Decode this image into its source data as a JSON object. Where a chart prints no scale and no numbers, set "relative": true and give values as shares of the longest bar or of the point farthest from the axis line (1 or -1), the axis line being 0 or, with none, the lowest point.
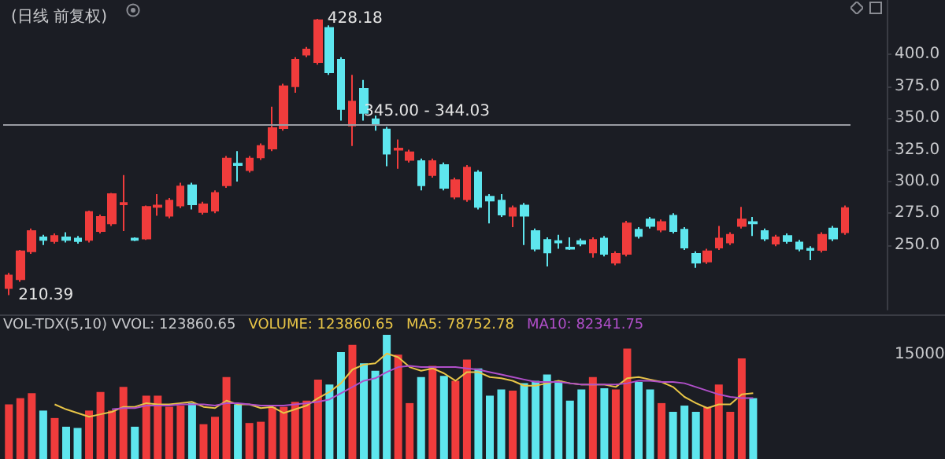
{
  "chart_data": [
    {
      "type": "candlestick",
      "title": "(日线 前复权)",
      "categories": [
        null,
        null,
        null,
        null,
        null,
        null,
        null,
        null,
        null,
        null,
        null,
        null,
        null,
        null,
        null,
        null,
        null,
        null,
        null,
        null,
        null,
        null,
        null,
        null,
        null,
        null,
        null,
        null,
        null,
        null,
        null,
        null,
        null,
        null,
        null,
        null,
        null,
        null,
        null,
        null,
        null,
        null,
        null,
        null,
        null,
        null,
        null,
        null,
        null,
        null,
        null,
        null,
        null,
        null,
        null,
        null,
        null,
        null,
        null,
        null,
        null,
        null,
        null,
        null,
        null,
        null,
        null,
        null,
        null,
        null,
        null,
        null,
        null,
        null
      ],
      "ohlc": [
        [
          216,
          228,
          210.39,
          226
        ],
        [
          223,
          246,
          221,
          245
        ],
        [
          245,
          263,
          243,
          261
        ],
        [
          256,
          258,
          250,
          254
        ],
        [
          253,
          259,
          251,
          257
        ],
        [
          256,
          260,
          252,
          254
        ],
        [
          255,
          257,
          251,
          253
        ],
        [
          254,
          277,
          252,
          276
        ],
        [
          261,
          274,
          259,
          272
        ],
        [
          267,
          291,
          265,
          290
        ],
        [
          282,
          305,
          261,
          283
        ],
        [
          255,
          256,
          253,
          254
        ],
        [
          255,
          281,
          254,
          280
        ],
        [
          280,
          290,
          273,
          281
        ],
        [
          273,
          287,
          271,
          285
        ],
        [
          281,
          299,
          279,
          296
        ],
        [
          297,
          299,
          278,
          282
        ],
        [
          276,
          284,
          274,
          282
        ],
        [
          277,
          293,
          275,
          291
        ],
        [
          297,
          320,
          295,
          318
        ],
        [
          314,
          324,
          300,
          313
        ],
        [
          309,
          320,
          307,
          318
        ],
        [
          319,
          330,
          317,
          328
        ],
        [
          326,
          359,
          324,
          342
        ],
        [
          342,
          377,
          340,
          375
        ],
        [
          375,
          398,
          370,
          396
        ],
        [
          400,
          406,
          398,
          404
        ],
        [
          394,
          428.18,
          392,
          427
        ],
        [
          421,
          423,
          384,
          386
        ],
        [
          396,
          398,
          348,
          357
        ],
        [
          344,
          384,
          328,
          363
        ],
        [
          373,
          380,
          348,
          354
        ],
        [
          349,
          352,
          340,
          345
        ],
        [
          341,
          343,
          312,
          322
        ],
        [
          325,
          333,
          310,
          326
        ],
        [
          317,
          325,
          315,
          323
        ],
        [
          316,
          318,
          293,
          297
        ],
        [
          305,
          318,
          303,
          316
        ],
        [
          313,
          315,
          293,
          295
        ],
        [
          288,
          303,
          286,
          301
        ],
        [
          286,
          313,
          284,
          311
        ],
        [
          307,
          309,
          278,
          280
        ],
        [
          288,
          290,
          267,
          285
        ],
        [
          285,
          290,
          272,
          274
        ],
        [
          273,
          281,
          264,
          279
        ],
        [
          281,
          283,
          250,
          273
        ],
        [
          261,
          263,
          245,
          247
        ],
        [
          254,
          256,
          233,
          244
        ],
        [
          253,
          258,
          247,
          252
        ],
        [
          248,
          256,
          246,
          247
        ],
        [
          253,
          255,
          249,
          251
        ],
        [
          244,
          256,
          240,
          254
        ],
        [
          255,
          257,
          241,
          243
        ],
        [
          236,
          245,
          234,
          243
        ],
        [
          243,
          269,
          241,
          267
        ],
        [
          262,
          264,
          255,
          257
        ],
        [
          270,
          272,
          263,
          265
        ],
        [
          262,
          270,
          260,
          268
        ],
        [
          273,
          275,
          259,
          261
        ],
        [
          262,
          264,
          246,
          248
        ],
        [
          243,
          245,
          232,
          236
        ],
        [
          237,
          247,
          235,
          245
        ],
        [
          248,
          265,
          246,
          255
        ],
        [
          252,
          260,
          250,
          258
        ],
        [
          265,
          280,
          263,
          270
        ],
        [
          268,
          272,
          257,
          267
        ],
        [
          261,
          263,
          253,
          255
        ],
        [
          251,
          258,
          249,
          256
        ],
        [
          257,
          259,
          251,
          253
        ],
        [
          252,
          254,
          245,
          247
        ],
        [
          247,
          249,
          238,
          246
        ],
        [
          246,
          260,
          244,
          258
        ],
        [
          263,
          265,
          253,
          255
        ],
        [
          260,
          281,
          258,
          279
        ]
      ],
      "colors": [
        "#f03c3c",
        "#f03c3c",
        "#f03c3c",
        "#5ee6ee",
        "#f03c3c",
        "#5ee6ee",
        "#5ee6ee",
        "#f03c3c",
        "#f03c3c",
        "#f03c3c",
        "#f03c3c",
        "#5ee6ee",
        "#f03c3c",
        "#f03c3c",
        "#f03c3c",
        "#f03c3c",
        "#5ee6ee",
        "#f03c3c",
        "#f03c3c",
        "#f03c3c",
        "#5ee6ee",
        "#f03c3c",
        "#f03c3c",
        "#f03c3c",
        "#f03c3c",
        "#f03c3c",
        "#f03c3c",
        "#f03c3c",
        "#5ee6ee",
        "#5ee6ee",
        "#f03c3c",
        "#5ee6ee",
        "#5ee6ee",
        "#5ee6ee",
        "#f03c3c",
        "#f03c3c",
        "#5ee6ee",
        "#f03c3c",
        "#5ee6ee",
        "#f03c3c",
        "#f03c3c",
        "#5ee6ee",
        "#5ee6ee",
        "#5ee6ee",
        "#f03c3c",
        "#5ee6ee",
        "#5ee6ee",
        "#5ee6ee",
        "#5ee6ee",
        "#5ee6ee",
        "#5ee6ee",
        "#f03c3c",
        "#5ee6ee",
        "#f03c3c",
        "#f03c3c",
        "#5ee6ee",
        "#5ee6ee",
        "#f03c3c",
        "#5ee6ee",
        "#5ee6ee",
        "#5ee6ee",
        "#f03c3c",
        "#f03c3c",
        "#f03c3c",
        "#f03c3c",
        "#5ee6ee",
        "#5ee6ee",
        "#f03c3c",
        "#5ee6ee",
        "#5ee6ee",
        "#5ee6ee",
        "#f03c3c",
        "#5ee6ee",
        "#f03c3c"
      ],
      "ylim": [
        199,
        443
      ],
      "yticks": [
        {
          "value": 250,
          "label": "250.0"
        },
        {
          "value": 275,
          "label": "275.0"
        },
        {
          "value": 300,
          "label": "300.0"
        },
        {
          "value": 325,
          "label": "325.0"
        },
        {
          "value": 350,
          "label": "350.0"
        },
        {
          "value": 375,
          "label": "375.0"
        },
        {
          "value": 400,
          "label": "400.0"
        }
      ],
      "tick_labels": "y",
      "ref_lines": [
        {
          "axis": "y",
          "value": 345,
          "label": "345.00 - 344.03",
          "color": "#9a9ca3"
        }
      ],
      "annotations": [
        "428.18",
        "210.39"
      ]
    },
    {
      "type": "bar",
      "relative": true,
      "tick_labels": false,
      "categories": [
        null,
        null,
        null,
        null,
        null,
        null,
        null,
        null,
        null,
        null,
        null,
        null,
        null,
        null,
        null,
        null,
        null,
        null,
        null,
        null,
        null,
        null,
        null,
        null,
        null,
        null,
        null,
        null,
        null,
        null,
        null,
        null,
        null,
        null,
        null,
        null,
        null,
        null,
        null,
        null,
        null,
        null,
        null,
        null,
        null,
        null,
        null,
        null,
        null,
        null,
        null,
        null,
        null,
        null,
        null,
        null,
        null,
        null,
        null,
        null,
        null,
        null,
        null,
        null,
        null,
        null,
        null,
        null,
        null,
        null,
        null,
        null,
        null,
        null
      ],
      "series": [
        {
          "type": "bar",
          "colors": [
            "#f03c3c",
            "#f03c3c",
            "#f03c3c",
            "#5ee6ee",
            "#f03c3c",
            "#5ee6ee",
            "#5ee6ee",
            "#f03c3c",
            "#f03c3c",
            "#f03c3c",
            "#f03c3c",
            "#5ee6ee",
            "#f03c3c",
            "#f03c3c",
            "#f03c3c",
            "#f03c3c",
            "#5ee6ee",
            "#f03c3c",
            "#f03c3c",
            "#f03c3c",
            "#5ee6ee",
            "#f03c3c",
            "#f03c3c",
            "#f03c3c",
            "#f03c3c",
            "#f03c3c",
            "#f03c3c",
            "#f03c3c",
            "#5ee6ee",
            "#5ee6ee",
            "#f03c3c",
            "#5ee6ee",
            "#5ee6ee",
            "#5ee6ee",
            "#f03c3c",
            "#f03c3c",
            "#5ee6ee",
            "#f03c3c",
            "#5ee6ee",
            "#f03c3c",
            "#f03c3c",
            "#5ee6ee",
            "#5ee6ee",
            "#5ee6ee",
            "#f03c3c",
            "#5ee6ee",
            "#5ee6ee",
            "#5ee6ee",
            "#5ee6ee",
            "#5ee6ee",
            "#5ee6ee",
            "#f03c3c",
            "#5ee6ee",
            "#f03c3c",
            "#f03c3c",
            "#5ee6ee",
            "#5ee6ee",
            "#f03c3c",
            "#5ee6ee",
            "#5ee6ee",
            "#5ee6ee",
            "#f03c3c",
            "#f03c3c",
            "#f03c3c",
            "#f03c3c",
            "#5ee6ee",
            null,
            null,
            null,
            null,
            null,
            null,
            null,
            null
          ],
          "values": [
            0.44,
            0.49,
            0.53,
            0.39,
            0.33,
            0.26,
            0.25,
            0.39,
            0.54,
            0.39,
            0.58,
            0.26,
            0.51,
            0.51,
            0.42,
            0.43,
            0.45,
            0.28,
            0.34,
            0.66,
            0.44,
            0.29,
            0.3,
            0.42,
            0.42,
            0.46,
            0.47,
            0.64,
            0.6,
            0.86,
            0.92,
            0.77,
            0.71,
            1,
            0.84,
            0.45,
            0.66,
            0.75,
            0.67,
            0.63,
            0.8,
            0.73,
            0.51,
            0.56,
            0.55,
            0.61,
            0.63,
            0.68,
            0.63,
            0.47,
            0.56,
            0.66,
            0.57,
            0.56,
            0.89,
            0.62,
            0.56,
            0.45,
            0.38,
            0.43,
            0.38,
            0.42,
            0.6,
            0.38,
            0.81,
            0.49,
            null,
            null,
            null,
            null,
            null,
            null,
            null,
            null
          ]
        },
        {
          "type": "line",
          "color": "#e8c547",
          "values": [
            null,
            null,
            null,
            null,
            0.44,
            0.4,
            0.37,
            0.34,
            0.36,
            0.38,
            0.42,
            0.42,
            0.45,
            0.44,
            0.44,
            0.45,
            0.46,
            0.42,
            0.41,
            0.47,
            0.44,
            0.44,
            0.41,
            0.42,
            0.37,
            0.4,
            0.43,
            0.49,
            0.54,
            0.61,
            0.72,
            0.76,
            0.77,
            0.85,
            0.82,
            0.74,
            0.71,
            0.73,
            0.69,
            0.63,
            0.7,
            0.7,
            0.66,
            0.65,
            0.63,
            0.59,
            0.59,
            0.61,
            0.63,
            0.61,
            0.6,
            0.6,
            0.6,
            0.58,
            0.65,
            0.66,
            0.64,
            0.62,
            0.58,
            0.5,
            0.45,
            0.41,
            0.44,
            0.44,
            0.52,
            0.53,
            null,
            null,
            null,
            null,
            null,
            null,
            null,
            null
          ]
        },
        {
          "type": "line",
          "color": "#b04fc9",
          "values": [
            null,
            null,
            null,
            null,
            null,
            null,
            null,
            null,
            null,
            0.4,
            0.41,
            0.41,
            0.43,
            0.43,
            0.43,
            0.44,
            0.44,
            0.44,
            0.43,
            0.45,
            0.45,
            0.44,
            0.43,
            0.43,
            0.43,
            0.44,
            0.45,
            0.46,
            0.48,
            0.53,
            0.58,
            0.63,
            0.65,
            0.7,
            0.74,
            0.75,
            0.74,
            0.74,
            0.74,
            0.74,
            0.73,
            0.72,
            0.7,
            0.68,
            0.66,
            0.64,
            0.62,
            0.62,
            0.62,
            0.61,
            0.6,
            0.6,
            0.6,
            0.6,
            0.61,
            0.63,
            0.63,
            0.62,
            0.62,
            0.61,
            0.58,
            0.55,
            0.52,
            0.5,
            0.49,
            0.49,
            null,
            null,
            null,
            null,
            null,
            null,
            null,
            null
          ]
        }
      ],
      "annotations": [
        "VOL-TDX(5,10) VVOL: 123860.65",
        "VOLUME: 123860.65",
        "MA5: 78752.78",
        "MA10: 82341.75",
        "15000"
      ]
    }
  ]
}
